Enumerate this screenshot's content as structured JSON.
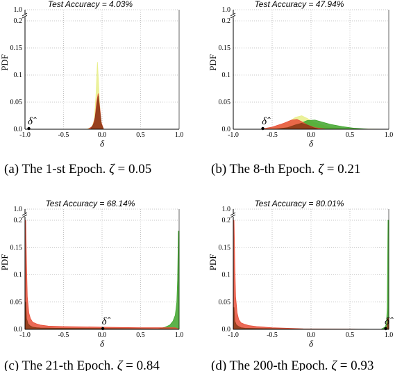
{
  "chart_data": [
    {
      "type": "area",
      "title": "Test Accuracy = 4.03%",
      "xlabel": "δ",
      "ylabel": "PDF",
      "xlim": [
        -1.0,
        1.0
      ],
      "ylim": [
        0,
        0.2
      ],
      "y_break_label": "1.0",
      "x_ticks": [
        "-1.0",
        "-0.5",
        "0.0",
        "0.5",
        "1.0"
      ],
      "y_ticks": [
        "0.0",
        "0.05",
        "0.1",
        "0.15",
        "0.2"
      ],
      "grid": true,
      "delta_hat_label": "δ̂",
      "delta_hat": -0.95,
      "caption": {
        "prefix": "(a) The 1-st Epoch.",
        "symbol": "ζ",
        "value": "= 0.05"
      },
      "series": [
        {
          "color": "#e8ef8a",
          "x": [
            -1.0,
            -0.2,
            -0.13,
            -0.1,
            -0.08,
            -0.06,
            -0.04,
            -0.02,
            0.0,
            0.02,
            1.0
          ],
          "y": [
            0,
            0,
            0.004,
            0.018,
            0.06,
            0.124,
            0.07,
            0.02,
            0.006,
            0,
            0
          ]
        },
        {
          "color": "#e8503a",
          "x": [
            -1.0,
            -0.18,
            -0.12,
            -0.09,
            -0.07,
            -0.05,
            -0.03,
            -0.01,
            0.02,
            1.0
          ],
          "y": [
            0,
            0,
            0.006,
            0.022,
            0.05,
            0.066,
            0.04,
            0.012,
            0,
            0
          ]
        },
        {
          "color": "#8a3b18",
          "x": [
            -1.0,
            -0.15,
            -0.1,
            -0.07,
            -0.05,
            -0.03,
            -0.01,
            0.02,
            1.0
          ],
          "y": [
            0,
            0,
            0.012,
            0.04,
            0.062,
            0.035,
            0.01,
            0,
            0
          ]
        }
      ]
    },
    {
      "type": "area",
      "title": "Test Accuracy = 47.94%",
      "xlabel": "δ",
      "ylabel": "PDF",
      "xlim": [
        -1.0,
        1.0
      ],
      "ylim": [
        0,
        0.2
      ],
      "y_break_label": "1.0",
      "x_ticks": [
        "-1.0",
        "-0.5",
        "0.0",
        "0.5",
        "1.0"
      ],
      "y_ticks": [
        "0.0",
        "0.05",
        "0.1",
        "0.15",
        "0.2"
      ],
      "grid": true,
      "delta_hat_label": "δ̂",
      "delta_hat": -0.62,
      "caption": {
        "prefix": "(b) The 8-th Epoch.",
        "symbol": "ζ",
        "value": "= 0.21"
      },
      "series": [
        {
          "color": "#e8ef8a",
          "x": [
            -1.0,
            -0.6,
            -0.45,
            -0.3,
            -0.2,
            -0.12,
            -0.05,
            0.05,
            0.2,
            0.4,
            1.0
          ],
          "y": [
            0,
            0,
            0.004,
            0.012,
            0.022,
            0.025,
            0.02,
            0.012,
            0.005,
            0.001,
            0
          ]
        },
        {
          "color": "#3fa52c",
          "x": [
            -1.0,
            -0.5,
            -0.3,
            -0.15,
            -0.05,
            0.05,
            0.15,
            0.25,
            0.4,
            0.55,
            0.75,
            1.0
          ],
          "y": [
            0,
            0,
            0.003,
            0.01,
            0.016,
            0.017,
            0.013,
            0.009,
            0.005,
            0.002,
            0,
            0
          ]
        },
        {
          "color": "#e8503a",
          "x": [
            -1.0,
            -0.65,
            -0.5,
            -0.35,
            -0.25,
            -0.18,
            -0.12,
            -0.05,
            0.05,
            0.2,
            1.0
          ],
          "y": [
            0,
            0,
            0.004,
            0.011,
            0.017,
            0.018,
            0.014,
            0.008,
            0.003,
            0,
            0
          ]
        },
        {
          "color": "#8a3b18",
          "x": [
            -1.0,
            -0.45,
            -0.3,
            -0.2,
            -0.12,
            -0.05,
            0.03,
            0.1,
            1.0
          ],
          "y": [
            0,
            0,
            0.003,
            0.008,
            0.011,
            0.008,
            0.003,
            0,
            0
          ]
        }
      ]
    },
    {
      "type": "area",
      "title": "Test Accuracy = 68.14%",
      "xlabel": "δ",
      "ylabel": "PDF",
      "xlim": [
        -1.0,
        1.0
      ],
      "ylim": [
        0,
        0.2
      ],
      "y_break_label": "1.0",
      "x_ticks": [
        "-1.0",
        "-0.5",
        "0.0",
        "0.5",
        "1.0"
      ],
      "y_ticks": [
        "0.0",
        "0.05",
        "0.1",
        "0.15",
        "0.2"
      ],
      "grid": true,
      "delta_hat_label": "δ̂",
      "delta_hat": 0.01,
      "caption": {
        "prefix": "(c) The 21-th Epoch.",
        "symbol": "ζ",
        "value": "= 0.84"
      },
      "series": [
        {
          "color": "#3fa52c",
          "x": [
            -1.0,
            0.7,
            0.82,
            0.88,
            0.92,
            0.95,
            0.97,
            0.98,
            0.99,
            1.0
          ],
          "y": [
            0,
            0,
            0.004,
            0.008,
            0.015,
            0.026,
            0.05,
            0.09,
            0.18,
            0.18
          ],
          "base_y": 0.003
        },
        {
          "color": "#e8503a",
          "x": [
            -1.0,
            -0.99,
            -0.98,
            -0.97,
            -0.95,
            -0.93,
            -0.9,
            -0.85,
            -0.8,
            -0.7,
            -0.5,
            0.0,
            0.5,
            0.95,
            1.0
          ],
          "y": [
            0.2,
            0.2,
            0.12,
            0.06,
            0.03,
            0.02,
            0.013,
            0.01,
            0.008,
            0.006,
            0.005,
            0.004,
            0.003,
            0.003,
            0
          ]
        },
        {
          "color": "#8a3b18",
          "x": [
            -1.0,
            -0.99,
            -0.98,
            -0.96,
            -0.93,
            -0.9,
            -0.85,
            -0.8,
            -0.6,
            0.0,
            0.6,
            1.0
          ],
          "y": [
            0.05,
            0.05,
            0.02,
            0.01,
            0.006,
            0.004,
            0.003,
            0.0025,
            0.002,
            0.0015,
            0.001,
            0
          ]
        }
      ]
    },
    {
      "type": "area",
      "title": "Test Accuracy = 80.01%",
      "xlabel": "δ",
      "ylabel": "PDF",
      "xlim": [
        -1.0,
        1.0
      ],
      "ylim": [
        0,
        0.2
      ],
      "y_break_label": "1.0",
      "x_ticks": [
        "-1.0",
        "-0.5",
        "0.0",
        "0.5",
        "1.0"
      ],
      "y_ticks": [
        "0.0",
        "0.05",
        "0.1",
        "0.15",
        "0.2"
      ],
      "grid": true,
      "delta_hat_label": "δ̂",
      "delta_hat": 0.96,
      "caption": {
        "prefix": "(d) The 200-th Epoch.",
        "symbol": "ζ",
        "value": "= 0.93"
      },
      "series": [
        {
          "color": "#3fa52c",
          "x": [
            -1.0,
            0.9,
            0.95,
            0.97,
            0.98,
            0.99,
            1.0
          ],
          "y": [
            0,
            0,
            0.004,
            0.01,
            0.04,
            0.2,
            0.2
          ]
        },
        {
          "color": "#e8503a",
          "x": [
            -1.0,
            -0.99,
            -0.98,
            -0.97,
            -0.95,
            -0.93,
            -0.9,
            -0.85,
            -0.8,
            -0.7,
            -0.5,
            -0.3,
            -0.1,
            0.2,
            0.6,
            1.0
          ],
          "y": [
            0.2,
            0.2,
            0.12,
            0.06,
            0.03,
            0.018,
            0.012,
            0.009,
            0.007,
            0.005,
            0.003,
            0.002,
            0.001,
            0.0005,
            0.0002,
            0
          ]
        },
        {
          "color": "#8a3b18",
          "x": [
            -1.0,
            -0.99,
            -0.98,
            -0.96,
            -0.93,
            -0.9,
            -0.85,
            -0.7,
            -0.4,
            0.0,
            1.0
          ],
          "y": [
            0.04,
            0.04,
            0.015,
            0.008,
            0.005,
            0.003,
            0.002,
            0.0015,
            0.001,
            0.0005,
            0
          ]
        },
        {
          "color": "#8a3b18",
          "x": [
            0.97,
            0.98,
            0.99,
            1.0
          ],
          "y": [
            0,
            0.008,
            0.02,
            0.02
          ]
        }
      ]
    }
  ]
}
